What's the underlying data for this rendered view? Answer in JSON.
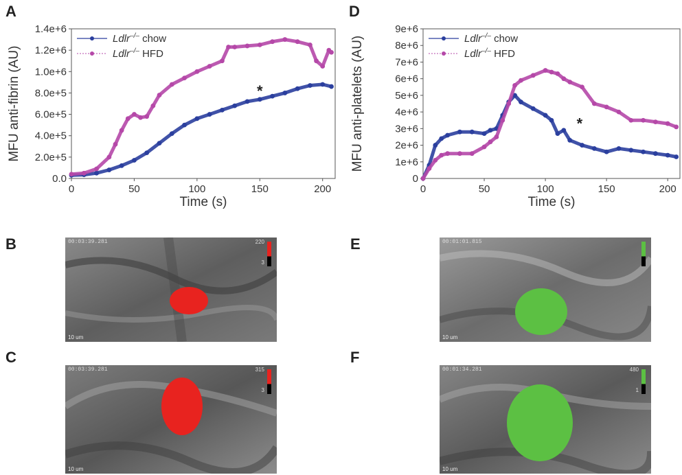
{
  "panels": {
    "A": "A",
    "B": "B",
    "C": "C",
    "D": "D",
    "E": "E",
    "F": "F"
  },
  "colors": {
    "chow": "#2b3f9e",
    "hfd": "#b548a8",
    "fibrin": "#e8231f",
    "platelets": "#5cc043"
  },
  "chart_data": [
    {
      "type": "scatter",
      "ylabel": "MFU anti-fibrin (AU)",
      "xlabel": "Time (s)",
      "xlim": [
        0,
        210
      ],
      "ylim": [
        0,
        1400000
      ],
      "xticks": [
        "0",
        "50",
        "100",
        "150",
        "200"
      ],
      "yticks": [
        "0.0",
        "2.0e+5",
        "4.0e+5",
        "6.0e+5",
        "8.0e+5",
        "1.0e+6",
        "1.2e+6",
        "1.4e+6"
      ],
      "annotation": "*",
      "legend": "top-left",
      "series": [
        {
          "name_prefix": "Ldlr",
          "name_sup": "–/–",
          "name_suffix": " chow",
          "x": [
            0,
            10,
            20,
            30,
            40,
            50,
            60,
            70,
            80,
            90,
            100,
            110,
            120,
            130,
            140,
            150,
            160,
            170,
            180,
            190,
            200,
            207
          ],
          "y": [
            30000,
            35000,
            50000,
            80000,
            120000,
            170000,
            240000,
            330000,
            420000,
            500000,
            560000,
            600000,
            640000,
            680000,
            720000,
            740000,
            770000,
            800000,
            840000,
            870000,
            880000,
            860000
          ]
        },
        {
          "name_prefix": "Ldlr",
          "name_sup": "–/–",
          "name_suffix": " HFD",
          "x": [
            0,
            10,
            20,
            30,
            35,
            40,
            45,
            50,
            55,
            60,
            65,
            70,
            80,
            90,
            100,
            110,
            120,
            125,
            130,
            140,
            150,
            160,
            170,
            180,
            190,
            195,
            200,
            205,
            207
          ],
          "y": [
            40000,
            50000,
            90000,
            200000,
            320000,
            450000,
            560000,
            600000,
            570000,
            580000,
            680000,
            780000,
            880000,
            940000,
            1000000,
            1050000,
            1100000,
            1230000,
            1230000,
            1240000,
            1250000,
            1280000,
            1300000,
            1280000,
            1250000,
            1100000,
            1050000,
            1200000,
            1180000
          ]
        }
      ]
    },
    {
      "type": "scatter",
      "ylabel": "MFU anti-platelets (AU)",
      "xlabel": "Time (s)",
      "xlim": [
        0,
        210
      ],
      "ylim": [
        0,
        9000000
      ],
      "xticks": [
        "0",
        "50",
        "100",
        "150",
        "200"
      ],
      "yticks": [
        "0",
        "1e+6",
        "2e+6",
        "3e+6",
        "4e+6",
        "5e+6",
        "6e+6",
        "7e+6",
        "8e+6",
        "9e+6"
      ],
      "annotation": "*",
      "legend": "top-left",
      "series": [
        {
          "name_prefix": "Ldlr",
          "name_sup": "–/–",
          "name_suffix": " chow",
          "x": [
            0,
            5,
            10,
            15,
            20,
            30,
            40,
            50,
            55,
            60,
            65,
            70,
            75,
            80,
            90,
            100,
            105,
            110,
            115,
            120,
            130,
            140,
            150,
            160,
            170,
            180,
            190,
            200,
            207
          ],
          "y": [
            0,
            800000,
            2000000,
            2400000,
            2600000,
            2800000,
            2800000,
            2700000,
            2900000,
            3000000,
            3800000,
            4600000,
            5000000,
            4600000,
            4200000,
            3800000,
            3500000,
            2700000,
            2900000,
            2300000,
            2000000,
            1800000,
            1600000,
            1800000,
            1700000,
            1600000,
            1500000,
            1400000,
            1300000
          ]
        },
        {
          "name_prefix": "Ldlr",
          "name_sup": "–/–",
          "name_suffix": " HFD",
          "x": [
            0,
            5,
            10,
            15,
            20,
            30,
            40,
            50,
            55,
            60,
            65,
            70,
            75,
            80,
            90,
            100,
            105,
            110,
            115,
            120,
            130,
            140,
            150,
            160,
            170,
            180,
            190,
            200,
            207
          ],
          "y": [
            0,
            600000,
            1100000,
            1400000,
            1500000,
            1500000,
            1500000,
            1900000,
            2200000,
            2500000,
            3500000,
            4500000,
            5600000,
            5900000,
            6200000,
            6500000,
            6400000,
            6300000,
            6000000,
            5800000,
            5500000,
            4500000,
            4300000,
            4000000,
            3500000,
            3500000,
            3400000,
            3300000,
            3100000
          ]
        }
      ]
    }
  ],
  "micrographs": {
    "B": {
      "timestamp": "00:03:39.281",
      "scale": "10 um",
      "cbar_top": "220",
      "cbar_bot": "3"
    },
    "C": {
      "timestamp": "00:03:39.281",
      "scale": "10 um",
      "cbar_top": "315",
      "cbar_bot": "3"
    },
    "E": {
      "timestamp": "00:01:01.815",
      "scale": "10 um",
      "cbar_top": "",
      "cbar_bot": ""
    },
    "F": {
      "timestamp": "00:01:34.281",
      "scale": "10 um",
      "cbar_top": "480",
      "cbar_bot": "1"
    }
  }
}
